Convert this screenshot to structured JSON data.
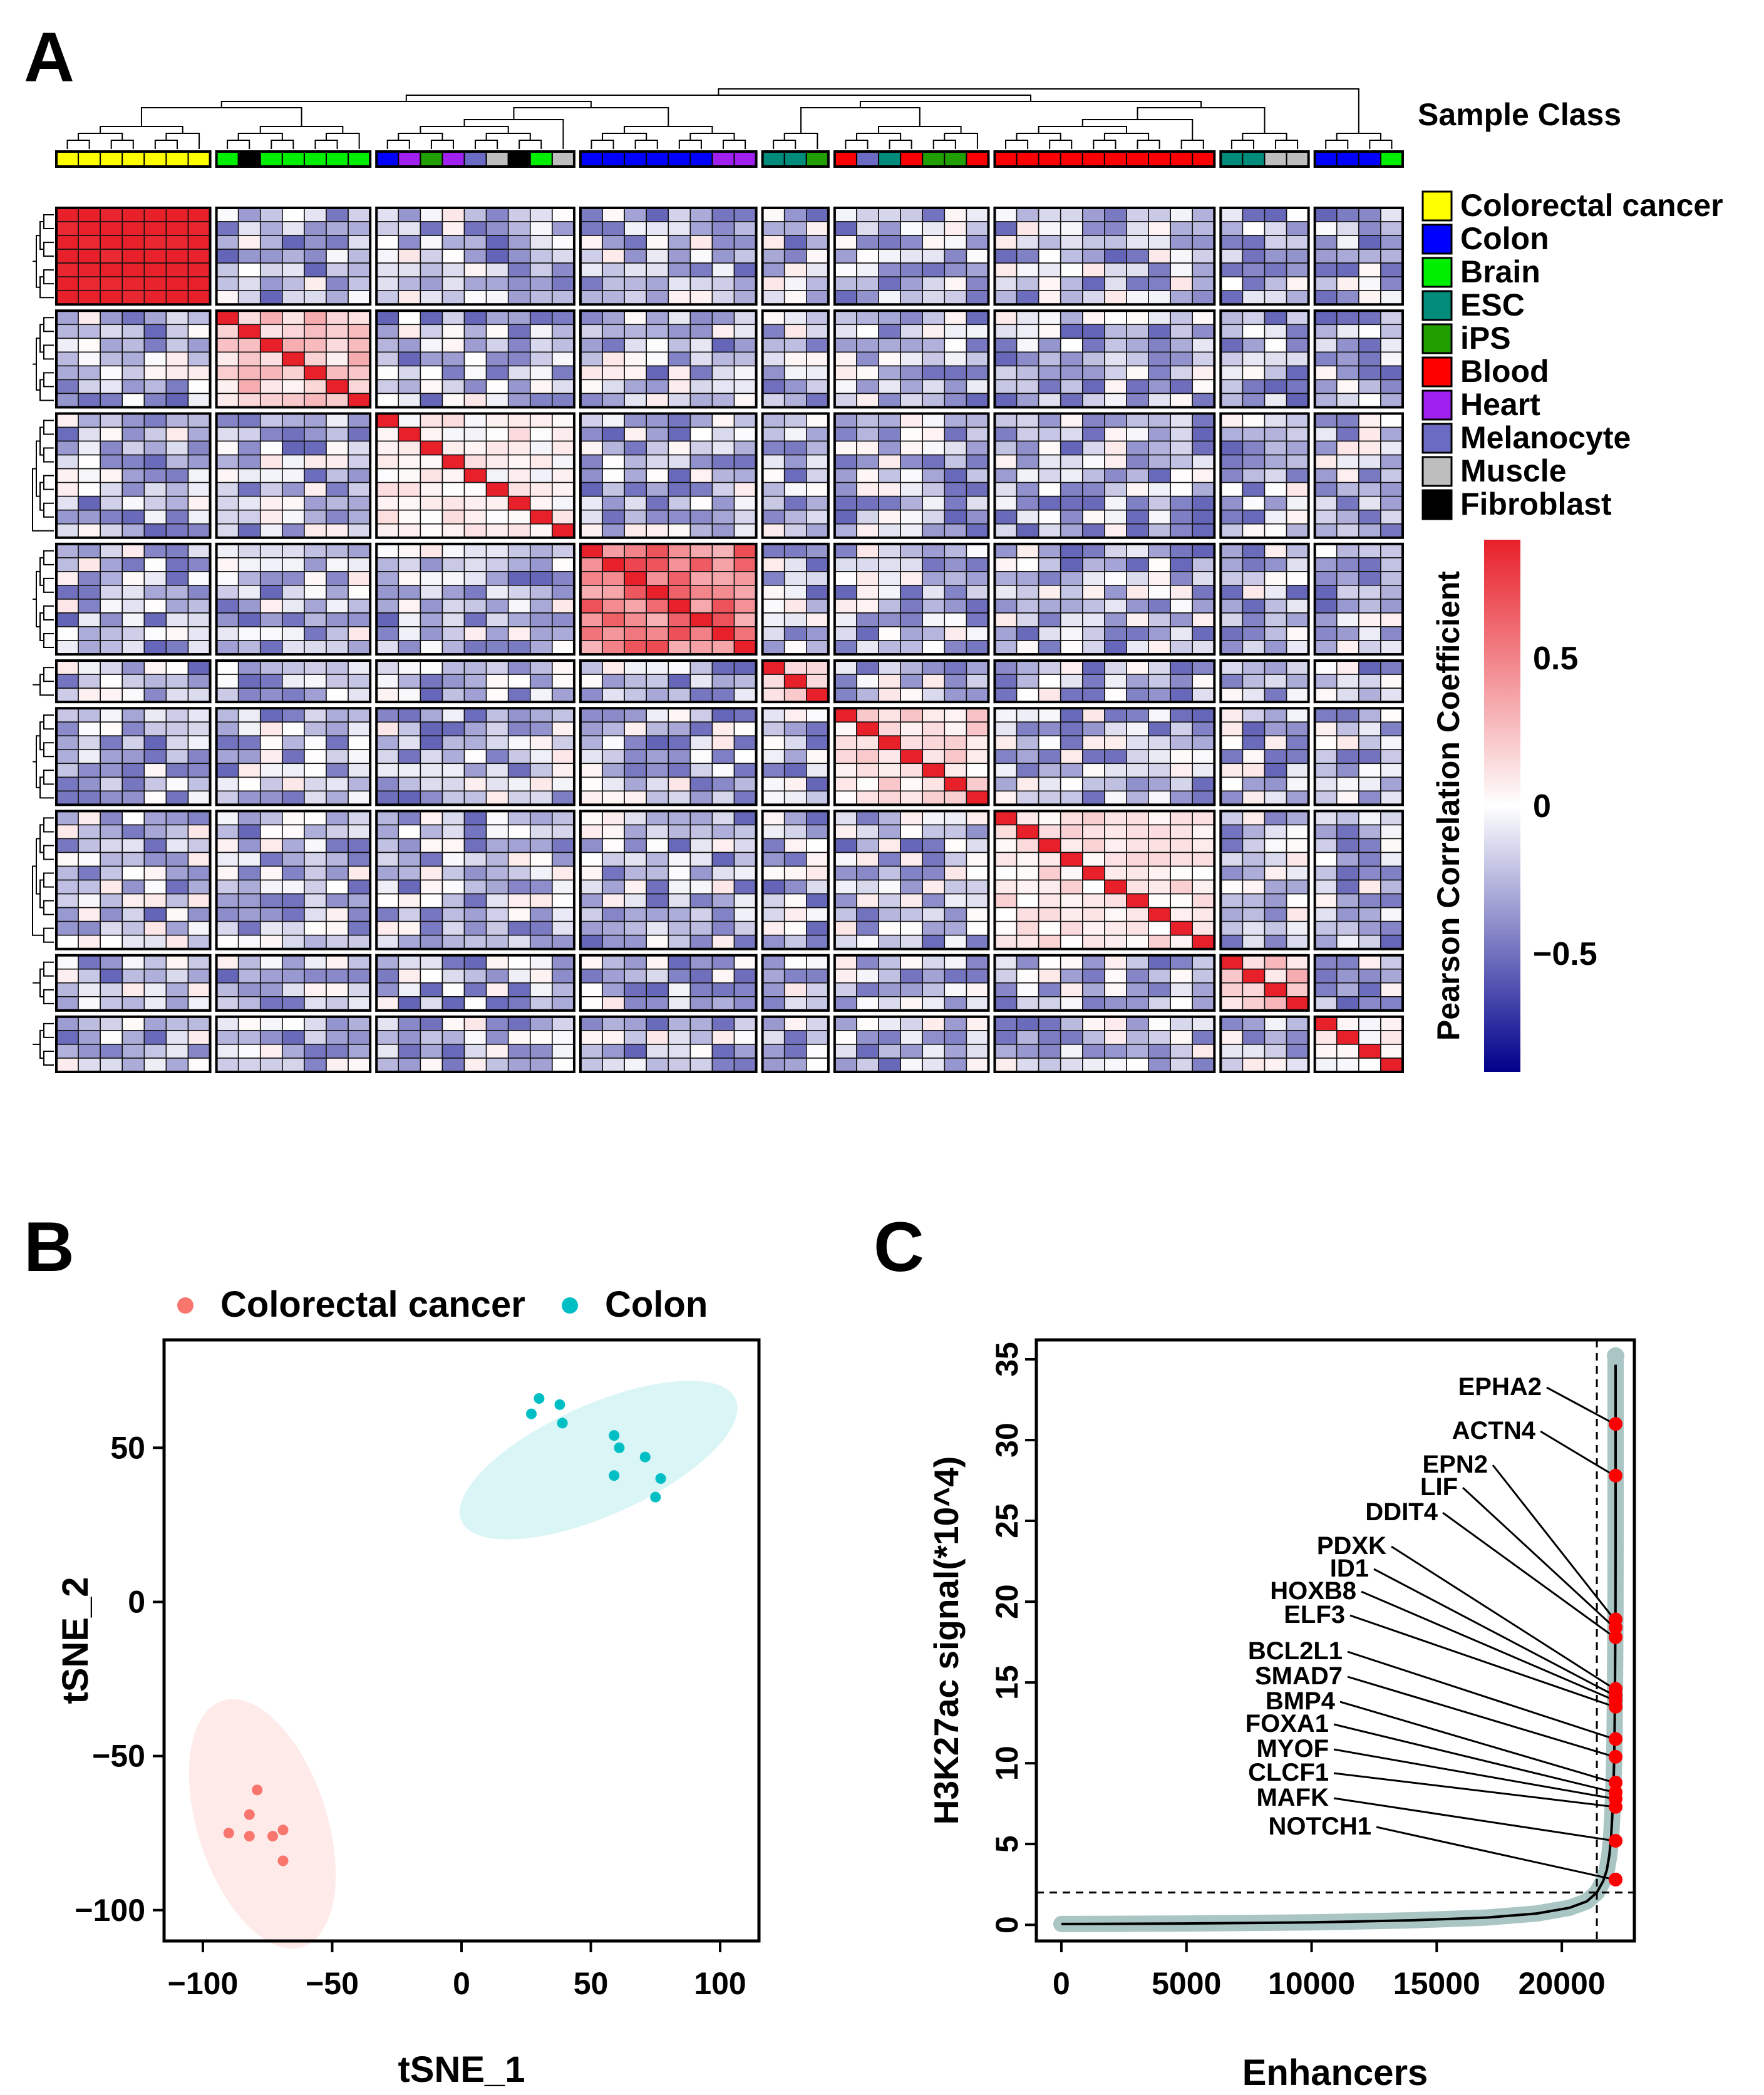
{
  "panel_labels": {
    "a": "A",
    "b": "B",
    "c": "C"
  },
  "colors": {
    "heat_low": "#00008b",
    "heat_mid": "#ffffff",
    "heat_high": "#e8202a",
    "colorectal_cancer": "#ffff00",
    "colon": "#0000ff",
    "brain": "#00ee00",
    "esc": "#008b7a",
    "ips": "#229f00",
    "blood": "#ff0000",
    "heart": "#a020f0",
    "melanocyte": "#6b6bc4",
    "muscle": "#bebebe",
    "fibroblast": "#000000",
    "tsne_cancer": "#f8766d",
    "tsne_colon": "#00bfc4",
    "enh_curve_bg": "#a9c5c4",
    "enh_highlight": "#ff0000"
  },
  "chart_data": [
    {
      "type": "heatmap",
      "title": "",
      "legend_title": "Sample Class",
      "legend": [
        {
          "label": "Colorectal cancer",
          "key": "colorectal_cancer"
        },
        {
          "label": "Colon",
          "key": "colon"
        },
        {
          "label": "Brain",
          "key": "brain"
        },
        {
          "label": "ESC",
          "key": "esc"
        },
        {
          "label": "iPS",
          "key": "ips"
        },
        {
          "label": "Blood",
          "key": "blood"
        },
        {
          "label": "Heart",
          "key": "heart"
        },
        {
          "label": "Melanocyte",
          "key": "melanocyte"
        },
        {
          "label": "Muscle",
          "key": "muscle"
        },
        {
          "label": "Fibroblast",
          "key": "fibroblast"
        }
      ],
      "colorbar_label": "Pearson Correlation Coefficient",
      "colorbar_ticks": [
        {
          "value": 0.5,
          "label": "0.5"
        },
        {
          "value": 0,
          "label": "0"
        },
        {
          "value": -0.5,
          "label": "−0.5"
        }
      ],
      "colorbar_range": [
        -0.9,
        0.9
      ],
      "clusters": [
        {
          "classes": [
            "colorectal_cancer",
            "colorectal_cancer",
            "colorectal_cancer",
            "colorectal_cancer",
            "colorectal_cancer",
            "colorectal_cancer",
            "colorectal_cancer"
          ],
          "within": [
            0.85,
            0.95
          ]
        },
        {
          "classes": [
            "brain",
            "fibroblast",
            "brain",
            "brain",
            "brain",
            "brain",
            "brain"
          ],
          "within": [
            0.05,
            0.35
          ]
        },
        {
          "classes": [
            "colon",
            "heart",
            "ips",
            "heart",
            "melanocyte",
            "muscle",
            "fibroblast",
            "brain",
            "muscle"
          ],
          "within": [
            -0.05,
            0.15
          ]
        },
        {
          "classes": [
            "colon",
            "colon",
            "colon",
            "colon",
            "colon",
            "colon",
            "heart",
            "heart"
          ],
          "within": [
            0.3,
            0.75
          ]
        },
        {
          "classes": [
            "esc",
            "esc",
            "ips"
          ],
          "within": [
            0.05,
            0.25
          ]
        },
        {
          "classes": [
            "blood",
            "melanocyte",
            "esc",
            "blood",
            "ips",
            "ips",
            "blood"
          ],
          "within": [
            0.0,
            0.25
          ]
        },
        {
          "classes": [
            "blood",
            "blood",
            "blood",
            "blood",
            "blood",
            "blood",
            "blood",
            "blood",
            "blood",
            "blood"
          ],
          "within": [
            0.0,
            0.2
          ]
        },
        {
          "classes": [
            "esc",
            "esc",
            "muscle",
            "muscle"
          ],
          "within": [
            0.05,
            0.35
          ]
        },
        {
          "classes": [
            "colon",
            "colon",
            "colon",
            "brain"
          ],
          "within": [
            -0.05,
            0.1
          ]
        }
      ],
      "between_range": [
        -0.55,
        0.1
      ]
    },
    {
      "type": "scatter",
      "xlabel": "tSNE_1",
      "ylabel": "tSNE_2",
      "xlim": [
        -115,
        115
      ],
      "ylim": [
        -110,
        85
      ],
      "xticks": [
        -100,
        -50,
        0,
        50,
        100
      ],
      "yticks": [
        -100,
        -50,
        0,
        50
      ],
      "xtick_labels": [
        "−100",
        "−50",
        "0",
        "50",
        "100"
      ],
      "ytick_labels": [
        "−100",
        "−50",
        "0",
        "50"
      ],
      "legend_position": "top",
      "series": [
        {
          "name": "Colorectal cancer",
          "color_key": "tsne_cancer",
          "ellipse": {
            "cx": -77,
            "cy": -72,
            "rx": 25,
            "ry": 42,
            "angle": -18
          },
          "points": [
            [
              -79,
              -61
            ],
            [
              -82,
              -69
            ],
            [
              -90,
              -75
            ],
            [
              -82,
              -76
            ],
            [
              -73,
              -76
            ],
            [
              -69,
              -74
            ],
            [
              -69,
              -84
            ]
          ]
        },
        {
          "name": "Colon",
          "color_key": "tsne_colon",
          "ellipse": {
            "cx": 53,
            "cy": 46,
            "rx": 58,
            "ry": 18,
            "angle": -24
          },
          "points": [
            [
              30,
              66
            ],
            [
              38,
              64
            ],
            [
              27,
              61
            ],
            [
              39,
              58
            ],
            [
              59,
              54
            ],
            [
              61,
              50
            ],
            [
              71,
              47
            ],
            [
              77,
              40
            ],
            [
              59,
              41
            ],
            [
              75,
              34
            ]
          ]
        }
      ]
    },
    {
      "type": "line",
      "xlabel": "Enhancers",
      "ylabel": "H3K27ac signal(*10^4)",
      "xlim": [
        -1000,
        22900
      ],
      "ylim": [
        -1.0,
        36.2
      ],
      "xticks": [
        0,
        5000,
        10000,
        15000,
        20000
      ],
      "yticks": [
        0,
        5,
        10,
        15,
        20,
        25,
        30,
        35
      ],
      "cutoff_x": 21400,
      "cutoff_y": 2.0,
      "n_enhancers": 22150,
      "curve_points": [
        [
          0,
          0.05
        ],
        [
          5000,
          0.08
        ],
        [
          10000,
          0.15
        ],
        [
          14000,
          0.28
        ],
        [
          17000,
          0.45
        ],
        [
          19000,
          0.7
        ],
        [
          20300,
          1.05
        ],
        [
          21000,
          1.45
        ],
        [
          21400,
          2.0
        ],
        [
          21650,
          2.7
        ],
        [
          21800,
          3.4
        ],
        [
          21900,
          4.3
        ],
        [
          21970,
          5.4
        ],
        [
          22020,
          6.8
        ],
        [
          22060,
          8.4
        ],
        [
          22090,
          10.0
        ],
        [
          22110,
          12.0
        ],
        [
          22125,
          14.5
        ],
        [
          22135,
          17.0
        ],
        [
          22145,
          19.5
        ],
        [
          22150,
          24
        ],
        [
          22150,
          35.2
        ]
      ],
      "genes": [
        {
          "name": "EPHA2",
          "y": 31.0
        },
        {
          "name": "ACTN4",
          "y": 27.8
        },
        {
          "name": "EPN2",
          "y": 18.9
        },
        {
          "name": "LIF",
          "y": 18.4
        },
        {
          "name": "DDIT4",
          "y": 17.8
        },
        {
          "name": "PDXK",
          "y": 14.6
        },
        {
          "name": "ID1",
          "y": 14.2
        },
        {
          "name": "HOXB8",
          "y": 13.9
        },
        {
          "name": "ELF3",
          "y": 13.5
        },
        {
          "name": "BCL2L1",
          "y": 11.5
        },
        {
          "name": "SMAD7",
          "y": 10.4
        },
        {
          "name": "BMP4",
          "y": 8.8
        },
        {
          "name": "FOXA1",
          "y": 8.2
        },
        {
          "name": "MYOF",
          "y": 7.8
        },
        {
          "name": "CLCF1",
          "y": 7.3
        },
        {
          "name": "MAFK",
          "y": 5.2
        },
        {
          "name": "NOTCH1",
          "y": 2.8
        }
      ]
    }
  ]
}
